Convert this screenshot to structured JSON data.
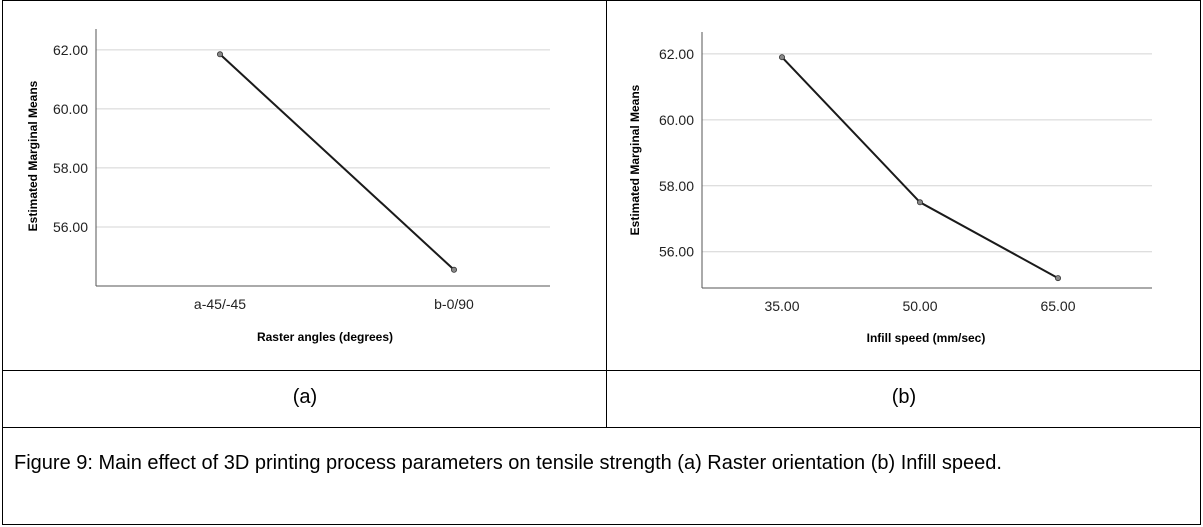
{
  "chart_data": [
    {
      "type": "line",
      "categories": [
        "a-45/-45",
        "b-0/90"
      ],
      "series": [
        {
          "values": [
            61.85,
            54.55
          ]
        }
      ],
      "xlabel": "Raster angles (degrees)",
      "ylabel": "Estimated Marginal Means",
      "yticks": [
        "56.00",
        "58.00",
        "60.00",
        "62.00"
      ],
      "ylim": [
        54.0,
        62.3
      ],
      "grid": "horizontal"
    },
    {
      "type": "line",
      "categories": [
        "35.00",
        "50.00",
        "65.00"
      ],
      "series": [
        {
          "values": [
            61.9,
            57.5,
            55.2
          ]
        }
      ],
      "xlabel": "Infill speed (mm/sec)",
      "ylabel": "Estimated Marginal Means",
      "yticks": [
        "56.00",
        "58.00",
        "60.00",
        "62.00"
      ],
      "ylim": [
        54.9,
        62.3
      ],
      "grid": "horizontal"
    }
  ],
  "labels": {
    "a": "(a)",
    "b": "(b)"
  },
  "caption": "Figure 9: Main effect of 3D printing process parameters on tensile strength (a) Raster orientation (b) Infill speed."
}
